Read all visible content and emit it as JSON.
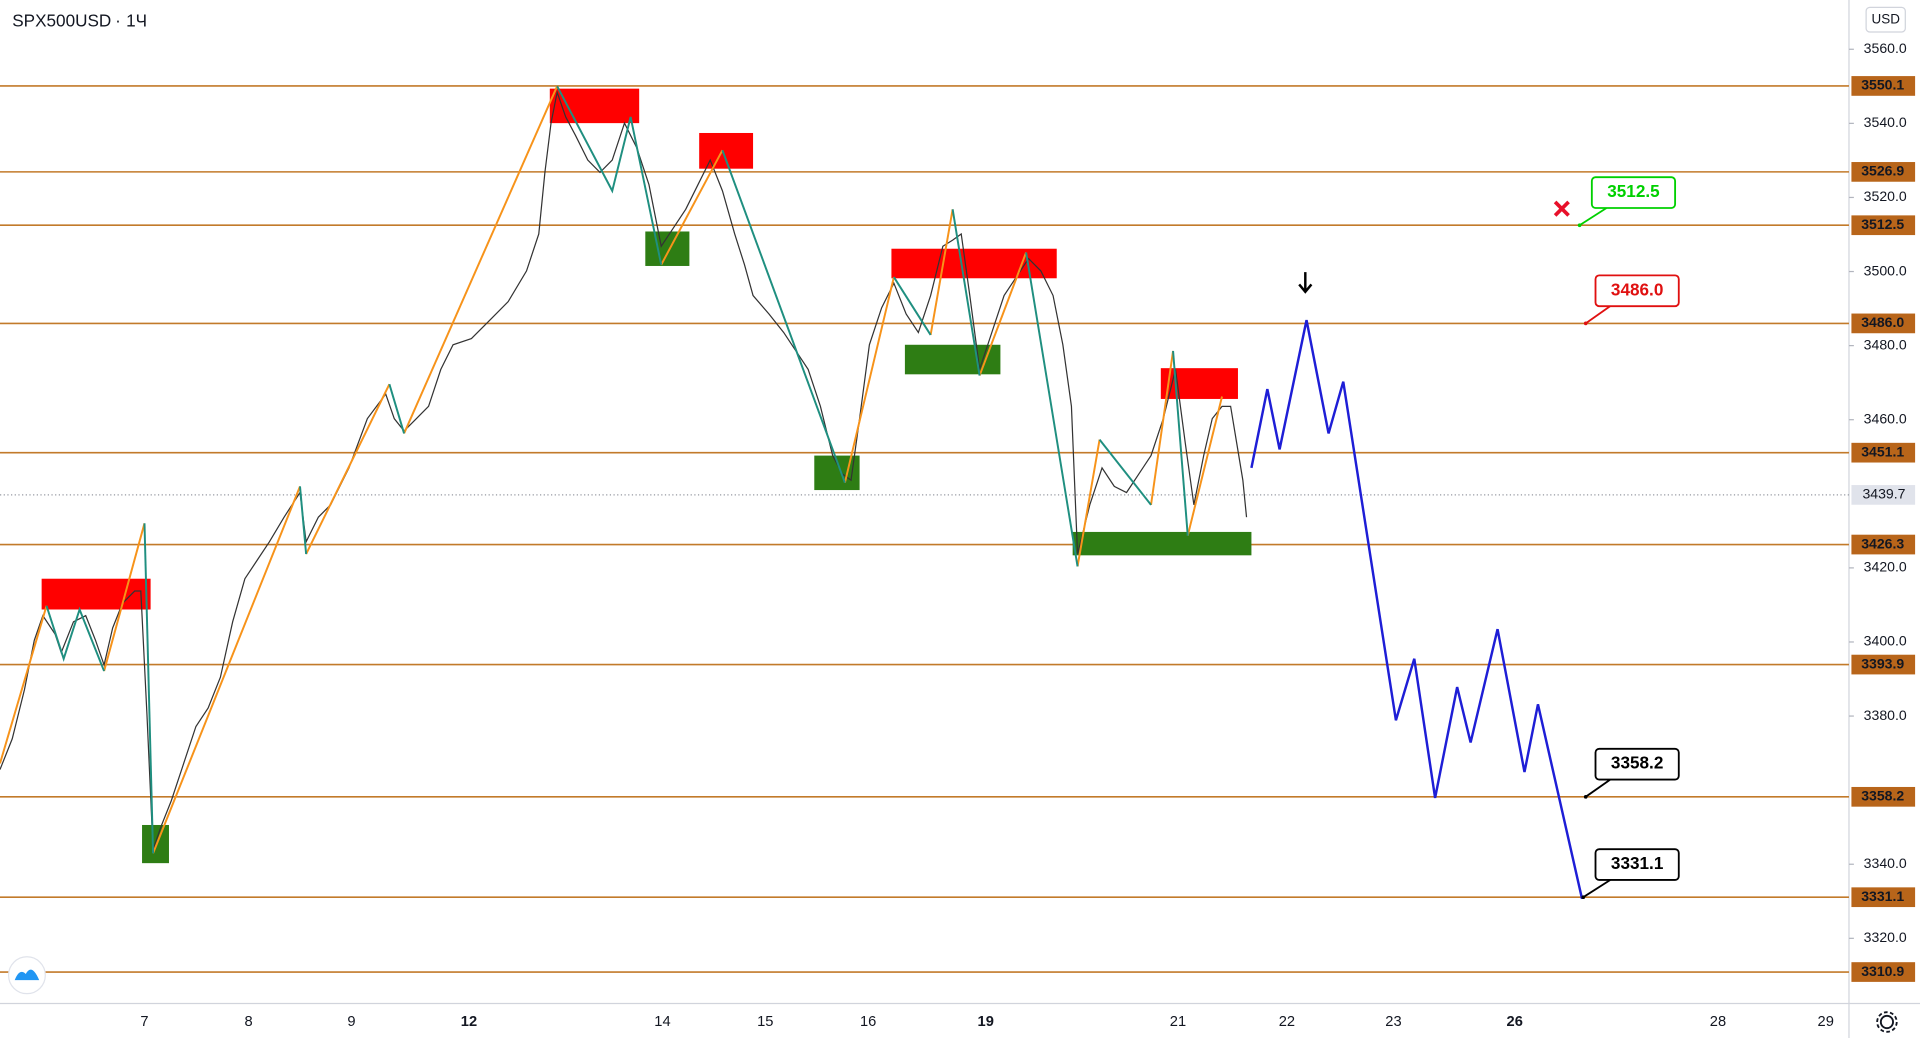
{
  "header": {
    "symbol": "SPX500USD",
    "interval": "1Ч"
  },
  "axis": {
    "currency": "USD",
    "ylim": [
      3302.4,
      3573.3
    ],
    "yticks": [
      {
        "value": 3560,
        "label": "3560.0"
      },
      {
        "value": 3540,
        "label": "3540.0"
      },
      {
        "value": 3520,
        "label": "3520.0"
      },
      {
        "value": 3500,
        "label": "3500.0"
      },
      {
        "value": 3480,
        "label": "3480.0"
      },
      {
        "value": 3460,
        "label": "3460.0"
      },
      {
        "value": 3420,
        "label": "3420.0"
      },
      {
        "value": 3400,
        "label": "3400.0"
      },
      {
        "value": 3380,
        "label": "3380.0"
      },
      {
        "value": 3340,
        "label": "3340.0"
      },
      {
        "value": 3320,
        "label": "3320.0"
      }
    ]
  },
  "x_labels": [
    "7",
    "8",
    "9",
    "12",
    "14",
    "15",
    "16",
    "19",
    "21",
    "22",
    "23",
    "26",
    "28",
    "29"
  ],
  "levels": [
    3550.1,
    3526.9,
    3512.5,
    {
      "value": 3486,
      "label": "3486.0"
    },
    3451.1,
    3426.3,
    3393.9,
    3358.2,
    3331.1,
    3310.9
  ],
  "current_price": 3439.7,
  "callouts": [
    {
      "value": 3512.5,
      "label": "3512.5",
      "color": "#00d000"
    },
    {
      "value": 3486,
      "label": "3486.0",
      "color": "#e01010"
    },
    {
      "value": 3358.2,
      "label": "3358.2",
      "color": "#000000"
    },
    {
      "value": 3331.1,
      "label": "3331.1",
      "color": "#000000"
    }
  ]
}
